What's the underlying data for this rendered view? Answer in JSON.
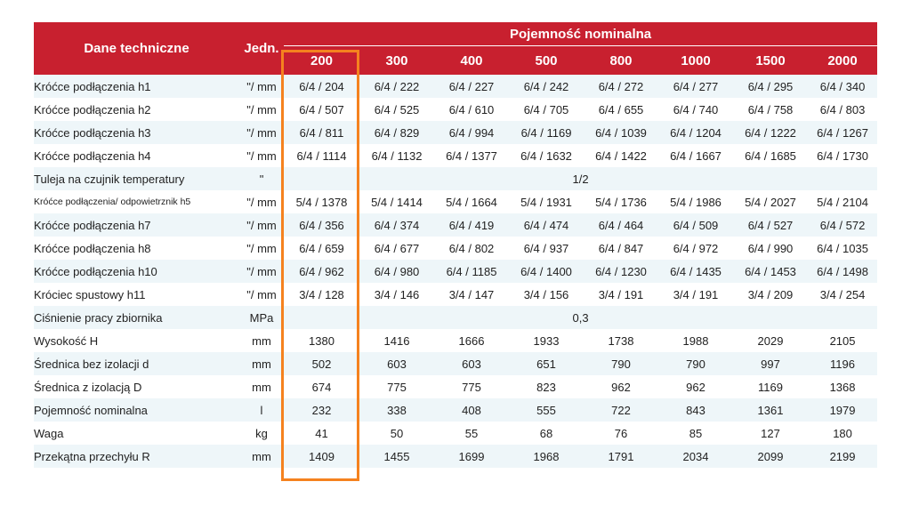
{
  "header": {
    "dane": "Dane techniczne",
    "jedn": "Jedn.",
    "group": "Pojemność nominalna",
    "capacities": [
      "200",
      "300",
      "400",
      "500",
      "800",
      "1000",
      "1500",
      "2000"
    ]
  },
  "rows": [
    {
      "label": "Króćce podłączenia h1",
      "unit": "\"/ mm",
      "values": [
        "6/4 / 204",
        "6/4 / 222",
        "6/4 / 227",
        "6/4 / 242",
        "6/4 / 272",
        "6/4 / 277",
        "6/4 / 295",
        "6/4 / 340"
      ]
    },
    {
      "label": "Króćce podłączenia h2",
      "unit": "\"/ mm",
      "values": [
        "6/4 / 507",
        "6/4 / 525",
        "6/4 / 610",
        "6/4 / 705",
        "6/4 / 655",
        "6/4 / 740",
        "6/4 / 758",
        "6/4 / 803"
      ]
    },
    {
      "label": "Króćce podłączenia h3",
      "unit": "\"/ mm",
      "values": [
        "6/4 / 811",
        "6/4 / 829",
        "6/4 / 994",
        "6/4 / 1169",
        "6/4 / 1039",
        "6/4 / 1204",
        "6/4 / 1222",
        "6/4 / 1267"
      ]
    },
    {
      "label": "Króćce podłączenia h4",
      "unit": "\"/ mm",
      "values": [
        "6/4 / 1114",
        "6/4 / 1132",
        "6/4 / 1377",
        "6/4 / 1632",
        "6/4 / 1422",
        "6/4 / 1667",
        "6/4 / 1685",
        "6/4 / 1730"
      ]
    },
    {
      "label": "Tuleja na czujnik temperatury",
      "unit": "\"",
      "span_value": "1/2"
    },
    {
      "label": "Króćce podłączenia/ odpowietrznik h5",
      "small": true,
      "unit": "\"/ mm",
      "values": [
        "5/4 / 1378",
        "5/4 / 1414",
        "5/4 / 1664",
        "5/4 / 1931",
        "5/4 / 1736",
        "5/4 / 1986",
        "5/4 / 2027",
        "5/4 / 2104"
      ]
    },
    {
      "label": "Króćce podłączenia h7",
      "unit": "\"/ mm",
      "values": [
        "6/4 / 356",
        "6/4 / 374",
        "6/4 / 419",
        "6/4 / 474",
        "6/4 / 464",
        "6/4 / 509",
        "6/4 / 527",
        "6/4 / 572"
      ]
    },
    {
      "label": "Króćce podłączenia h8",
      "unit": "\"/ mm",
      "values": [
        "6/4 / 659",
        "6/4 / 677",
        "6/4 / 802",
        "6/4 / 937",
        "6/4 / 847",
        "6/4 / 972",
        "6/4 / 990",
        "6/4 / 1035"
      ]
    },
    {
      "label": "Króćce podłączenia h10",
      "unit": "\"/ mm",
      "values": [
        "6/4 / 962",
        "6/4 / 980",
        "6/4 / 1185",
        "6/4 / 1400",
        "6/4 / 1230",
        "6/4 / 1435",
        "6/4 / 1453",
        "6/4 / 1498"
      ]
    },
    {
      "label": "Króciec spustowy h11",
      "unit": "\"/ mm",
      "values": [
        "3/4 / 128",
        "3/4 / 146",
        "3/4 / 147",
        "3/4 / 156",
        "3/4 / 191",
        "3/4 / 191",
        "3/4 / 209",
        "3/4 / 254"
      ]
    },
    {
      "label": "Ciśnienie pracy zbiornika",
      "unit": "MPa",
      "span_value": "0,3"
    },
    {
      "label": "Wysokość H",
      "unit": "mm",
      "values": [
        "1380",
        "1416",
        "1666",
        "1933",
        "1738",
        "1988",
        "2029",
        "2105"
      ]
    },
    {
      "label": "Średnica bez izolacji d",
      "unit": "mm",
      "values": [
        "502",
        "603",
        "603",
        "651",
        "790",
        "790",
        "997",
        "1196"
      ]
    },
    {
      "label": "Średnica z izolacją D",
      "unit": "mm",
      "values": [
        "674",
        "775",
        "775",
        "823",
        "962",
        "962",
        "1169",
        "1368"
      ]
    },
    {
      "label": "Pojemność nominalna",
      "unit": "l",
      "values": [
        "232",
        "338",
        "408",
        "555",
        "722",
        "843",
        "1361",
        "1979"
      ]
    },
    {
      "label": "Waga",
      "unit": "kg",
      "values": [
        "41",
        "50",
        "55",
        "68",
        "76",
        "85",
        "127",
        "180"
      ]
    },
    {
      "label": "Przekątna przechyłu R",
      "unit": "mm",
      "values": [
        "1409",
        "1455",
        "1699",
        "1968",
        "1791",
        "2034",
        "2099",
        "2199"
      ]
    }
  ],
  "colors": {
    "header_bg": "#c8202f",
    "stripe_bg": "#eef6f9",
    "highlight": "#f5821f"
  }
}
